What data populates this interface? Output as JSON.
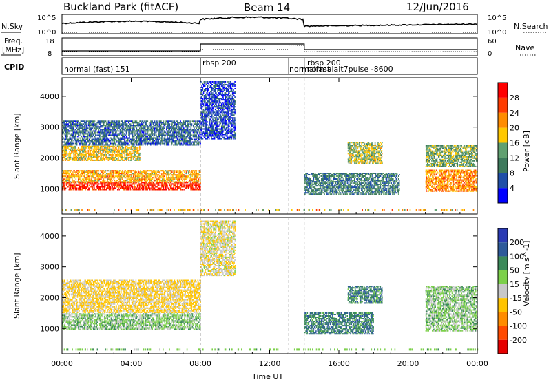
{
  "header": {
    "site": "Buckland Park (fitACF)",
    "beam": "Beam 14",
    "date": "12/Jun/2016"
  },
  "left_labels": {
    "nsky": "N.Sky",
    "freq": "Freq.",
    "freq_unit": "[MHz]",
    "cpid": "CPID"
  },
  "right_labels": {
    "nsearch": "N.Search",
    "nave": "Nave"
  },
  "noise_panel": {
    "ticks_left": [
      "10^5",
      "10^0"
    ],
    "ticks_right": [
      "10^5",
      "10^0"
    ]
  },
  "freq_panel": {
    "ticks_left": [
      "18",
      "8"
    ],
    "ticks_right": [
      "60",
      "0"
    ]
  },
  "cpid_segments": [
    {
      "start_h": 0,
      "end_h": 8,
      "label": "normal (fast) 151"
    },
    {
      "start_h": 8,
      "end_h": 13.1,
      "label": "rbsp 200"
    },
    {
      "start_h": 13.1,
      "end_h": 14,
      "label": "normalfast"
    },
    {
      "start_h": 14,
      "end_h": 24,
      "label": "rbsp 200"
    },
    {
      "start_h": 14,
      "end_h": 24,
      "label": "normalalt7pulse -8600"
    }
  ],
  "x_axis": {
    "label": "Time UT",
    "range_hours": [
      0,
      24
    ],
    "tick_labels": [
      "00:00",
      "04:00",
      "08:00",
      "12:00",
      "16:00",
      "20:00",
      "00:00"
    ]
  },
  "y_axis": {
    "label": "Slant Range [km]",
    "range_km": [
      180,
      4600
    ],
    "tick_values": [
      1000,
      2000,
      3000,
      4000
    ]
  },
  "power_scale": {
    "label": "Power [dB]",
    "ticks": [
      "4",
      "8",
      "12",
      "16",
      "20",
      "24",
      "28"
    ],
    "colors": [
      "#0000ff",
      "#1f4fa8",
      "#3d7a5c",
      "#60a070",
      "#ffc800",
      "#ff8c00",
      "#ff3c00",
      "#ff0000"
    ]
  },
  "velocity_scale": {
    "label": "Velocity [m s^-1]",
    "ticks": [
      "200",
      "100",
      "50",
      "15",
      "-15",
      "-50",
      "-100",
      "-200"
    ],
    "colors": [
      "#2a3ab4",
      "#2d5a9a",
      "#3b8a5a",
      "#7cd04a",
      "#c8c8c8",
      "#ffc400",
      "#ff8c00",
      "#ff4a00",
      "#e60000"
    ]
  },
  "chart_data": {
    "type": "heatmap",
    "title": "Buckland Park (fitACF) Beam 14 12/Jun/2016",
    "xlabel": "Time UT",
    "ylabel": "Slant Range [km]",
    "xlim_hours": [
      0,
      24
    ],
    "ylim_km": [
      180,
      4600
    ],
    "vertical_markers_hours": [
      8,
      13.1,
      14
    ],
    "power_regions": [
      {
        "t0": 0,
        "t1": 8,
        "r0": 950,
        "r1": 1200,
        "power_db": 28
      },
      {
        "t0": 0,
        "t1": 8,
        "r0": 1200,
        "r1": 1600,
        "power_db": 20
      },
      {
        "t0": 0,
        "t1": 4.5,
        "r0": 1900,
        "r1": 2400,
        "power_db": 18
      },
      {
        "t0": 0,
        "t1": 8,
        "r0": 2400,
        "r1": 3200,
        "power_db": 8
      },
      {
        "t0": 8,
        "t1": 10,
        "r0": 2600,
        "r1": 4500,
        "power_db": 5
      },
      {
        "t0": 14,
        "t1": 19.5,
        "r0": 800,
        "r1": 1500,
        "power_db": 10
      },
      {
        "t0": 16.5,
        "t1": 18.5,
        "r0": 1800,
        "r1": 2500,
        "power_db": 16
      },
      {
        "t0": 21,
        "t1": 24,
        "r0": 900,
        "r1": 1600,
        "power_db": 22
      },
      {
        "t0": 21,
        "t1": 24,
        "r0": 1700,
        "r1": 2400,
        "power_db": 14
      }
    ],
    "velocity_regions": [
      {
        "t0": 0,
        "t1": 8,
        "r0": 950,
        "r1": 1500,
        "velocity": 0
      },
      {
        "t0": 0,
        "t1": 8,
        "r0": 1500,
        "r1": 2600,
        "velocity": -60
      },
      {
        "t0": 8,
        "t1": 10,
        "r0": 2700,
        "r1": 4500,
        "velocity": -40
      },
      {
        "t0": 14,
        "t1": 18,
        "r0": 800,
        "r1": 1500,
        "velocity": 45
      },
      {
        "t0": 16.5,
        "t1": 18.5,
        "r0": 1800,
        "r1": 2400,
        "velocity": 40
      },
      {
        "t0": 21,
        "t1": 24,
        "r0": 900,
        "r1": 2400,
        "velocity": 0
      }
    ]
  }
}
